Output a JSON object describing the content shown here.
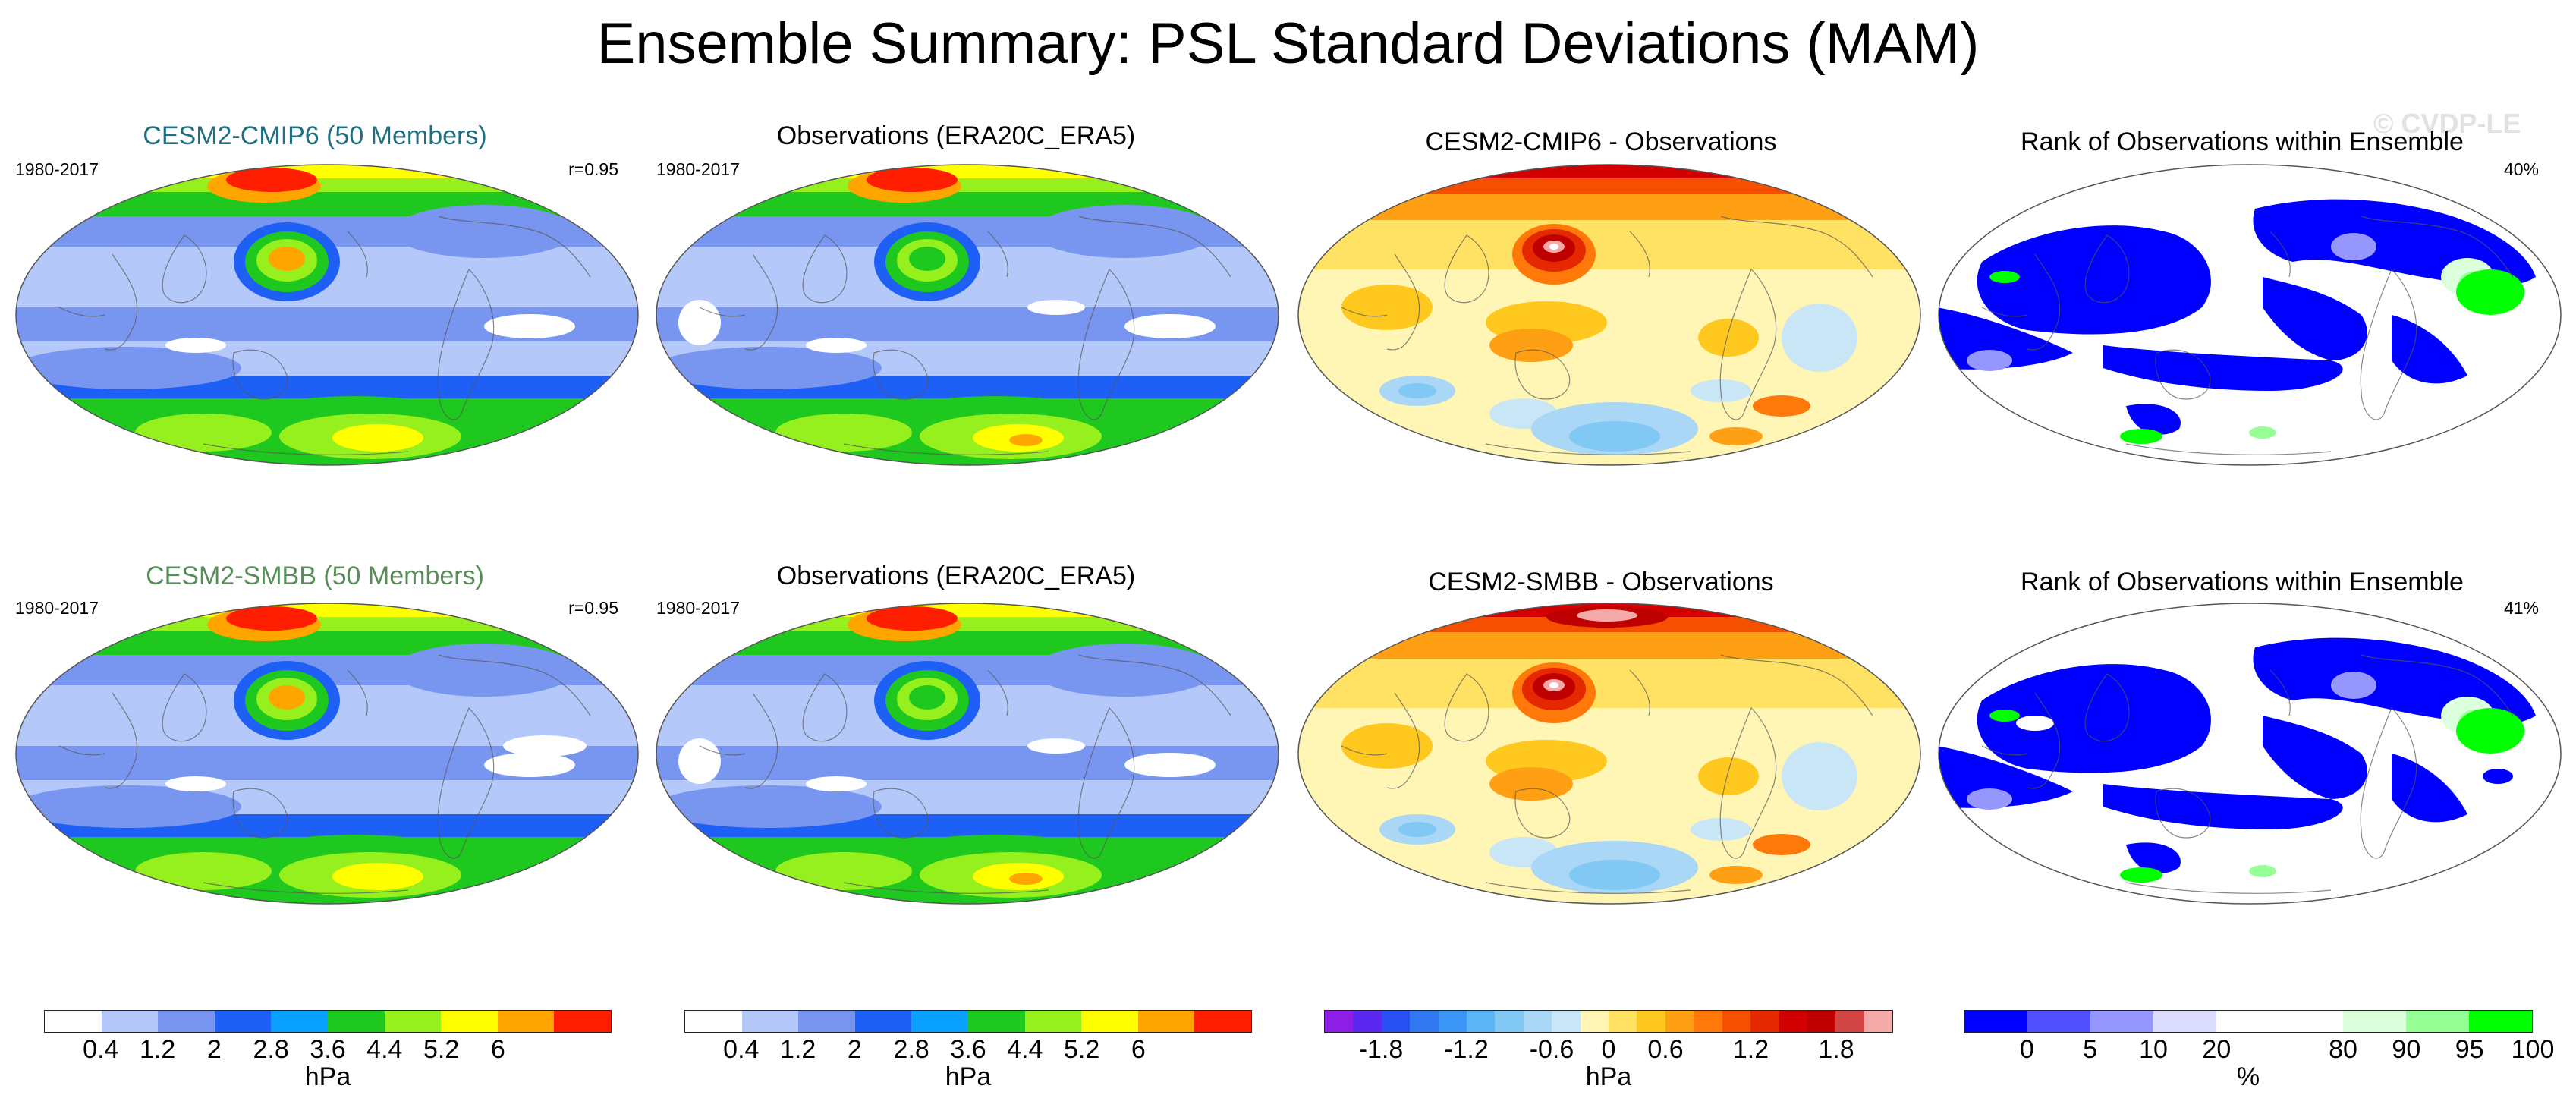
{
  "title": "Ensemble Summary: PSL Standard Deviations (MAM)",
  "watermark": "© CVDP-LE",
  "rows": [
    {
      "panels": [
        {
          "kind": "std",
          "title": "CESM2-CMIP6 (50 Members)",
          "title_color": "#1f6f80",
          "left_label": "1980-2017",
          "right_label": "r=0.95"
        },
        {
          "kind": "std",
          "title": "Observations (ERA20C_ERA5)",
          "title_color": "#000000",
          "left_label": "1980-2017",
          "right_label": ""
        },
        {
          "kind": "diff",
          "title": "CESM2-CMIP6 - Observations",
          "title_color": "#000000",
          "left_label": "",
          "right_label": ""
        },
        {
          "kind": "rank",
          "title": "Rank of Observations within Ensemble",
          "title_color": "#000000",
          "left_label": "",
          "right_label": "40%"
        }
      ]
    },
    {
      "panels": [
        {
          "kind": "std",
          "title": "CESM2-SMBB (50 Members)",
          "title_color": "#5a8c5a",
          "left_label": "1980-2017",
          "right_label": "r=0.95"
        },
        {
          "kind": "std",
          "title": "Observations (ERA20C_ERA5)",
          "title_color": "#000000",
          "left_label": "1980-2017",
          "right_label": ""
        },
        {
          "kind": "diff",
          "title": "CESM2-SMBB - Observations",
          "title_color": "#000000",
          "left_label": "",
          "right_label": ""
        },
        {
          "kind": "rank",
          "title": "Rank of Observations within Ensemble",
          "title_color": "#000000",
          "left_label": "",
          "right_label": "41%"
        }
      ]
    }
  ],
  "colorbars": [
    {
      "unit": "hPa",
      "ticks": [
        "0.4",
        "1.2",
        "2",
        "2.8",
        "3.6",
        "4.4",
        "5.2",
        "6"
      ],
      "colors": [
        "#ffffff",
        "#b4c8fa",
        "#7896f0",
        "#1e5ff5",
        "#0aa0ff",
        "#1ec81e",
        "#96f01e",
        "#ffff00",
        "#ffa500",
        "#ff1e00"
      ]
    },
    {
      "unit": "hPa",
      "ticks": [
        "0.4",
        "1.2",
        "2",
        "2.8",
        "3.6",
        "4.4",
        "5.2",
        "6"
      ],
      "colors": [
        "#ffffff",
        "#b4c8fa",
        "#7896f0",
        "#1e5ff5",
        "#0aa0ff",
        "#1ec81e",
        "#96f01e",
        "#ffff00",
        "#ffa500",
        "#ff1e00"
      ]
    },
    {
      "unit": "hPa",
      "ticks": [
        "-1.8",
        "-1.2",
        "-0.6",
        "0",
        "0.6",
        "1.2",
        "1.8"
      ],
      "colors": [
        "#8c1ee6",
        "#5a28f0",
        "#2850f0",
        "#3278f0",
        "#3c96f5",
        "#5ab4f5",
        "#82c8f5",
        "#aad7f5",
        "#c8e6f5",
        "#fff5b4",
        "#ffe164",
        "#ffc81e",
        "#ffa014",
        "#ff780a",
        "#f55000",
        "#e62800",
        "#d20000",
        "#be0000",
        "#d24646",
        "#f5aaaa"
      ]
    },
    {
      "unit": "%",
      "ticks": [
        "0",
        "5",
        "10",
        "20",
        "80",
        "90",
        "95",
        "100"
      ],
      "colors": [
        "#0000ff",
        "#5050ff",
        "#9696ff",
        "#dcdcff",
        "#ffffff",
        "#ffffff",
        "#dcffdc",
        "#96ff96",
        "#00ff00"
      ]
    }
  ],
  "chart_data": [
    {
      "type": "heatmap",
      "title": "CESM2-CMIP6 (50 Members)",
      "period": "1980-2017",
      "pattern_correlation": 0.95,
      "units": "hPa",
      "levels": [
        0.4,
        1.2,
        2,
        2.8,
        3.6,
        4.4,
        5.2,
        6
      ]
    },
    {
      "type": "heatmap",
      "title": "Observations (ERA20C_ERA5)",
      "period": "1980-2017",
      "units": "hPa",
      "levels": [
        0.4,
        1.2,
        2,
        2.8,
        3.6,
        4.4,
        5.2,
        6
      ]
    },
    {
      "type": "heatmap",
      "title": "CESM2-CMIP6 - Observations",
      "units": "hPa",
      "levels": [
        -1.8,
        -1.2,
        -0.6,
        0,
        0.6,
        1.2,
        1.8
      ]
    },
    {
      "type": "heatmap",
      "title": "Rank of Observations within Ensemble",
      "units": "%",
      "levels": [
        0,
        5,
        10,
        20,
        80,
        90,
        95,
        100
      ],
      "summary_percent": 40
    },
    {
      "type": "heatmap",
      "title": "CESM2-SMBB (50 Members)",
      "period": "1980-2017",
      "pattern_correlation": 0.95,
      "units": "hPa",
      "levels": [
        0.4,
        1.2,
        2,
        2.8,
        3.6,
        4.4,
        5.2,
        6
      ]
    },
    {
      "type": "heatmap",
      "title": "Observations (ERA20C_ERA5)",
      "period": "1980-2017",
      "units": "hPa",
      "levels": [
        0.4,
        1.2,
        2,
        2.8,
        3.6,
        4.4,
        5.2,
        6
      ]
    },
    {
      "type": "heatmap",
      "title": "CESM2-SMBB - Observations",
      "units": "hPa",
      "levels": [
        -1.8,
        -1.2,
        -0.6,
        0,
        0.6,
        1.2,
        1.8
      ]
    },
    {
      "type": "heatmap",
      "title": "Rank of Observations within Ensemble",
      "units": "%",
      "levels": [
        0,
        5,
        10,
        20,
        80,
        90,
        95,
        100
      ],
      "summary_percent": 41
    }
  ]
}
